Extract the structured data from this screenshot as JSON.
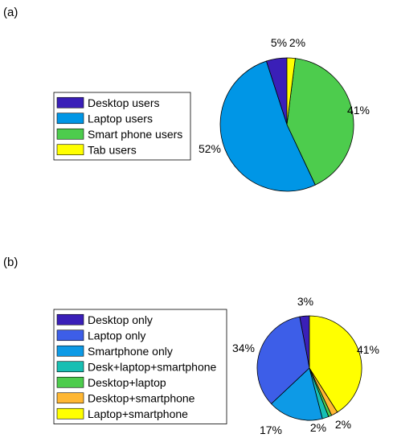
{
  "chart_data": [
    {
      "panel_label": "(a)",
      "type": "pie",
      "categories": [
        "Desktop users",
        "Laptop users",
        "Smart phone users",
        "Tab users"
      ],
      "values": [
        5,
        52,
        41,
        2
      ],
      "labels": [
        "5%",
        "52%",
        "41%",
        "2%"
      ],
      "colors": [
        "#3a1fb8",
        "#0096e6",
        "#4dcc4d",
        "#ffff00"
      ],
      "legend_position": "left"
    },
    {
      "panel_label": "(b)",
      "type": "pie",
      "categories": [
        "Desktop only",
        "Laptop only",
        "Smartphone only",
        "Desk+laptop+smartphone",
        "Desktop+laptop",
        "Desktop+smartphone",
        "Laptop+smartphone"
      ],
      "values": [
        3,
        34,
        17,
        2,
        1,
        2,
        41
      ],
      "labels": [
        "3%",
        "34%",
        "17%",
        "2%",
        "",
        "2%",
        "41%"
      ],
      "colors": [
        "#3a1fb8",
        "#3d5ee8",
        "#0d9ae6",
        "#17bfb3",
        "#4dcc4d",
        "#ffb733",
        "#ffff00"
      ],
      "legend_position": "left"
    }
  ]
}
